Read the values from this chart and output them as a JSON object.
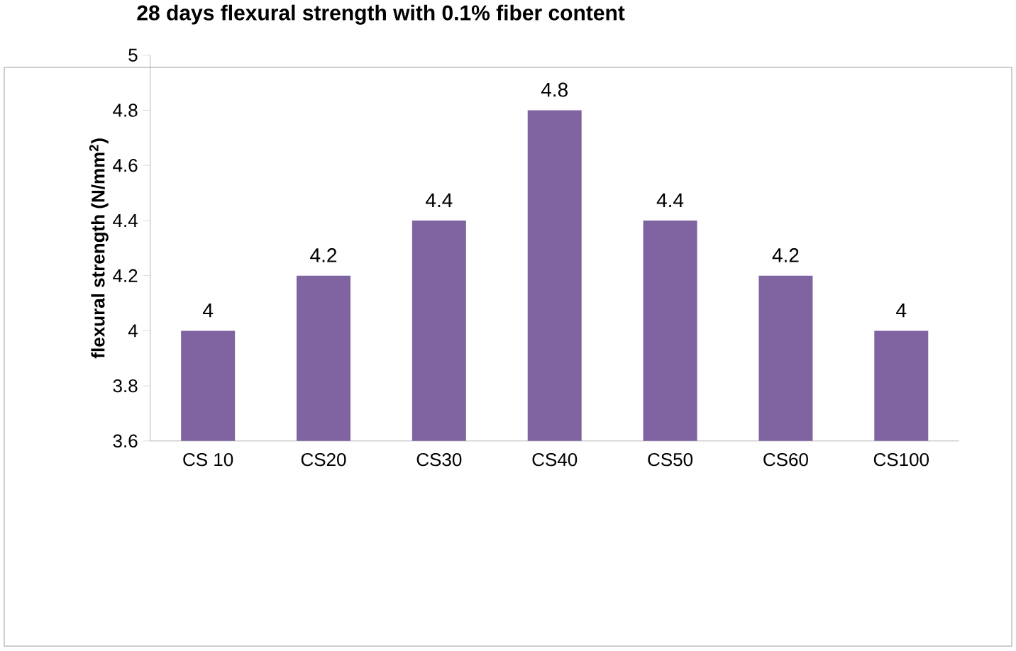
{
  "chart_data": {
    "type": "bar",
    "title": "28 days flexural strength with 0.1% fiber content",
    "ylabel": "flexural strength (N/mm$^{2}$)",
    "categories": [
      "CS 10",
      "CS20",
      "CS30",
      "CS40",
      "CS50",
      "CS60",
      "CS100"
    ],
    "values": [
      4,
      4.2,
      4.4,
      4.8,
      4.4,
      4.2,
      4
    ],
    "color": "#8064a2",
    "ylim": [
      3.6,
      5
    ],
    "yticks": [
      3.6,
      3.8,
      4,
      4.2,
      4.4,
      4.6,
      4.8,
      5
    ],
    "data_labels": true
  }
}
